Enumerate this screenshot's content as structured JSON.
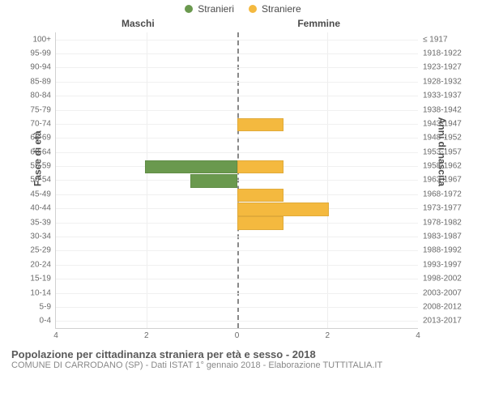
{
  "legend": {
    "male": {
      "label": "Stranieri",
      "color": "#6a994e"
    },
    "female": {
      "label": "Straniere",
      "color": "#f4b93f"
    }
  },
  "headers": {
    "left": "Maschi",
    "right": "Femmine"
  },
  "axes": {
    "left_title": "Fasce di età",
    "right_title": "Anni di nascita",
    "xmax": 4,
    "xticks": [
      4,
      2,
      0,
      2,
      4
    ],
    "grid_color": "#eeeeee",
    "tick_fontsize": 10,
    "header_fontsize": 12
  },
  "chart": {
    "type": "population-pyramid",
    "background_color": "#ffffff",
    "center_line_color": "#888888",
    "rows": [
      {
        "age": "100+",
        "birth": "≤ 1917",
        "male": 0,
        "female": 0
      },
      {
        "age": "95-99",
        "birth": "1918-1922",
        "male": 0,
        "female": 0
      },
      {
        "age": "90-94",
        "birth": "1923-1927",
        "male": 0,
        "female": 0
      },
      {
        "age": "85-89",
        "birth": "1928-1932",
        "male": 0,
        "female": 0
      },
      {
        "age": "80-84",
        "birth": "1933-1937",
        "male": 0,
        "female": 0
      },
      {
        "age": "75-79",
        "birth": "1938-1942",
        "male": 0,
        "female": 0
      },
      {
        "age": "70-74",
        "birth": "1943-1947",
        "male": 0,
        "female": 1
      },
      {
        "age": "65-69",
        "birth": "1948-1952",
        "male": 0,
        "female": 0
      },
      {
        "age": "60-64",
        "birth": "1953-1957",
        "male": 0,
        "female": 0
      },
      {
        "age": "55-59",
        "birth": "1958-1962",
        "male": 2,
        "female": 1
      },
      {
        "age": "50-54",
        "birth": "1963-1967",
        "male": 1,
        "female": 0
      },
      {
        "age": "45-49",
        "birth": "1968-1972",
        "male": 0,
        "female": 1
      },
      {
        "age": "40-44",
        "birth": "1973-1977",
        "male": 0,
        "female": 2
      },
      {
        "age": "35-39",
        "birth": "1978-1982",
        "male": 0,
        "female": 1
      },
      {
        "age": "30-34",
        "birth": "1983-1987",
        "male": 0,
        "female": 0
      },
      {
        "age": "25-29",
        "birth": "1988-1992",
        "male": 0,
        "female": 0
      },
      {
        "age": "20-24",
        "birth": "1993-1997",
        "male": 0,
        "female": 0
      },
      {
        "age": "15-19",
        "birth": "1998-2002",
        "male": 0,
        "female": 0
      },
      {
        "age": "10-14",
        "birth": "2003-2007",
        "male": 0,
        "female": 0
      },
      {
        "age": "5-9",
        "birth": "2008-2012",
        "male": 0,
        "female": 0
      },
      {
        "age": "0-4",
        "birth": "2013-2017",
        "male": 0,
        "female": 0
      }
    ]
  },
  "footer": {
    "title": "Popolazione per cittadinanza straniera per età e sesso - 2018",
    "subtitle": "COMUNE DI CARRODANO (SP) - Dati ISTAT 1° gennaio 2018 - Elaborazione TUTTITALIA.IT"
  }
}
